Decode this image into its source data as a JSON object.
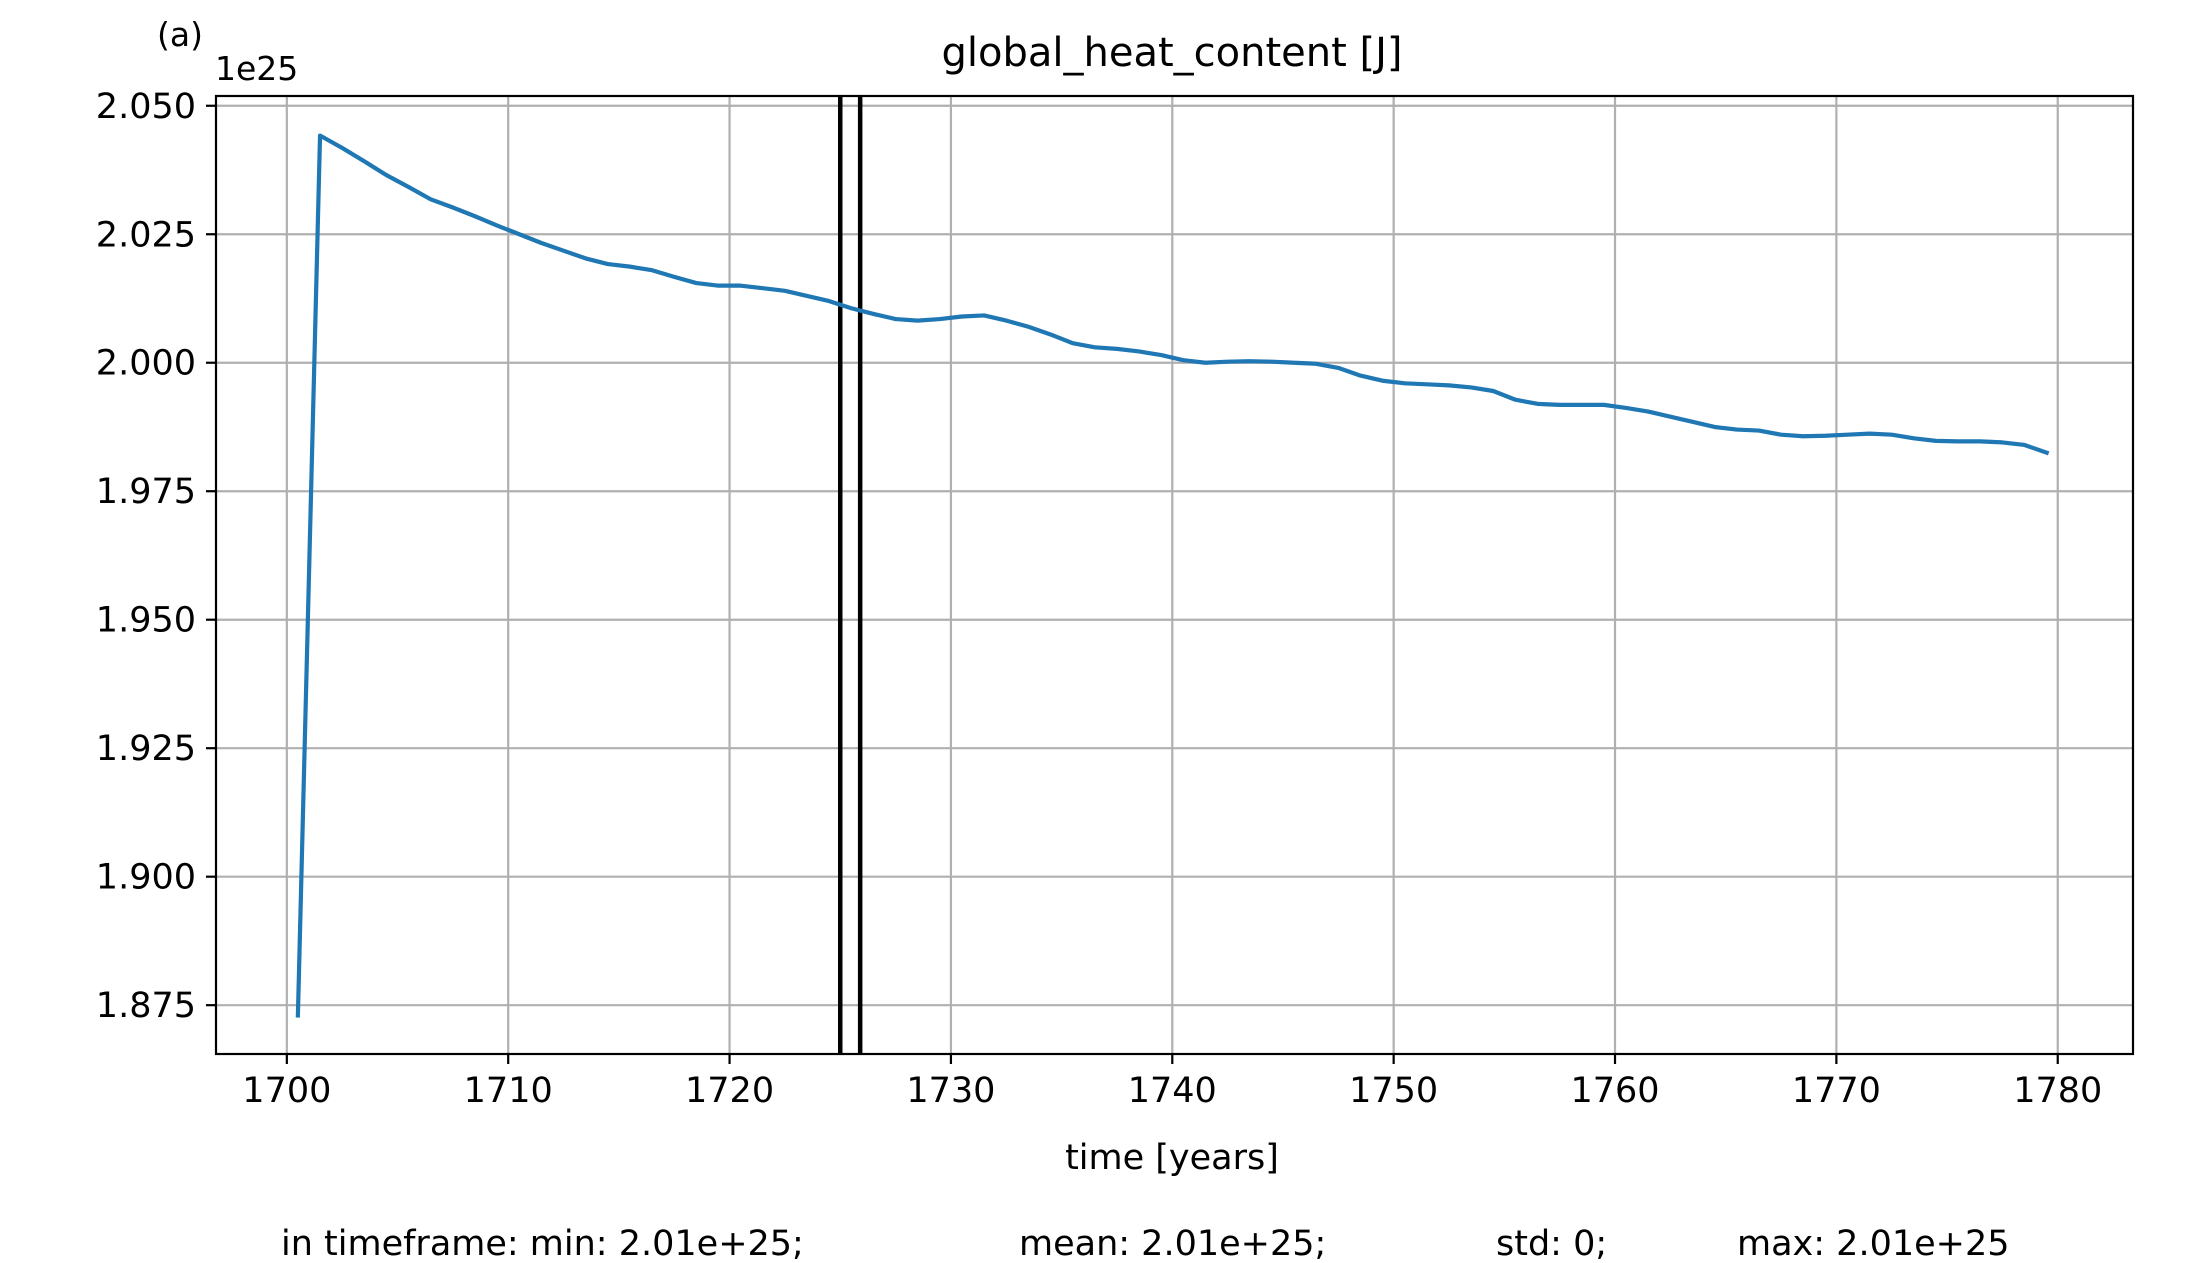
{
  "chart_data": {
    "type": "line",
    "panel_label": "(a)",
    "title": "global_heat_content [J]",
    "xlabel": "time [years]",
    "ylabel": "",
    "y_offset_label": "1e25",
    "xlim": [
      1696.8,
      1783.4
    ],
    "ylim": [
      1.8655,
      2.0519
    ],
    "x_ticks": [
      1700,
      1710,
      1720,
      1730,
      1740,
      1750,
      1760,
      1770,
      1780
    ],
    "x_tick_labels": [
      "1700",
      "1710",
      "1720",
      "1730",
      "1740",
      "1750",
      "1760",
      "1770",
      "1780"
    ],
    "y_ticks": [
      1.875,
      1.9,
      1.925,
      1.95,
      1.975,
      2.0,
      2.025,
      2.05
    ],
    "y_tick_labels": [
      "1.875",
      "1.900",
      "1.925",
      "1.950",
      "1.975",
      "2.000",
      "2.025",
      "2.050"
    ],
    "grid": true,
    "line_color": "#1f77b4",
    "vertical_markers": [
      1725.0,
      1725.9
    ],
    "marker_color": "#000000",
    "series": [
      {
        "x": [
          1700.5,
          1701.5,
          1702.5,
          1703.5,
          1704.5,
          1705.5,
          1706.5,
          1707.5,
          1708.5,
          1709.5,
          1710.5,
          1711.5,
          1712.5,
          1713.5,
          1714.5,
          1715.5,
          1716.5,
          1717.5,
          1718.5,
          1719.5,
          1720.5,
          1721.5,
          1722.5,
          1723.5,
          1724.5,
          1725.5,
          1726.5,
          1727.5,
          1728.5,
          1729.5,
          1730.5,
          1731.5,
          1732.5,
          1733.5,
          1734.5,
          1735.5,
          1736.5,
          1737.5,
          1738.5,
          1739.5,
          1740.5,
          1741.5,
          1742.5,
          1743.5,
          1744.5,
          1745.5,
          1746.5,
          1747.5,
          1748.5,
          1749.5,
          1750.5,
          1751.5,
          1752.5,
          1753.5,
          1754.5,
          1755.5,
          1756.5,
          1757.5,
          1758.5,
          1759.5,
          1760.5,
          1761.5,
          1762.5,
          1763.5,
          1764.5,
          1765.5,
          1766.5,
          1767.5,
          1768.5,
          1769.5,
          1770.5,
          1771.5,
          1772.5,
          1773.5,
          1774.5,
          1775.5,
          1776.5,
          1777.5,
          1778.5,
          1779.5
        ],
        "values": [
          1.873,
          2.0442,
          2.0418,
          2.0392,
          2.0365,
          2.0342,
          2.0318,
          2.0302,
          2.0285,
          2.0267,
          2.025,
          2.0233,
          2.0218,
          2.0203,
          2.0192,
          2.0187,
          2.018,
          2.0167,
          2.0155,
          2.015,
          2.015,
          2.0145,
          2.014,
          2.013,
          2.012,
          2.0106,
          2.0095,
          2.0085,
          2.0082,
          2.0085,
          2.009,
          2.0092,
          2.0082,
          2.007,
          2.0055,
          2.0038,
          2.003,
          2.0027,
          2.0022,
          2.0015,
          2.0005,
          2.0,
          2.0002,
          2.0003,
          2.0002,
          2.0,
          1.9998,
          1.999,
          1.9975,
          1.9965,
          1.996,
          1.9958,
          1.9956,
          1.9952,
          1.9945,
          1.9928,
          1.992,
          1.9918,
          1.9918,
          1.9918,
          1.9912,
          1.9905,
          1.9895,
          1.9885,
          1.9875,
          1.987,
          1.9868,
          1.986,
          1.9857,
          1.9858,
          1.986,
          1.9862,
          1.986,
          1.9853,
          1.9848,
          1.9847,
          1.9847,
          1.9845,
          1.984,
          1.9825
        ]
      }
    ],
    "stats": {
      "min": "in timeframe: min: 2.01e+25;",
      "mean": "mean: 2.01e+25;",
      "std": "std: 0;",
      "max": "max: 2.01e+25"
    }
  }
}
